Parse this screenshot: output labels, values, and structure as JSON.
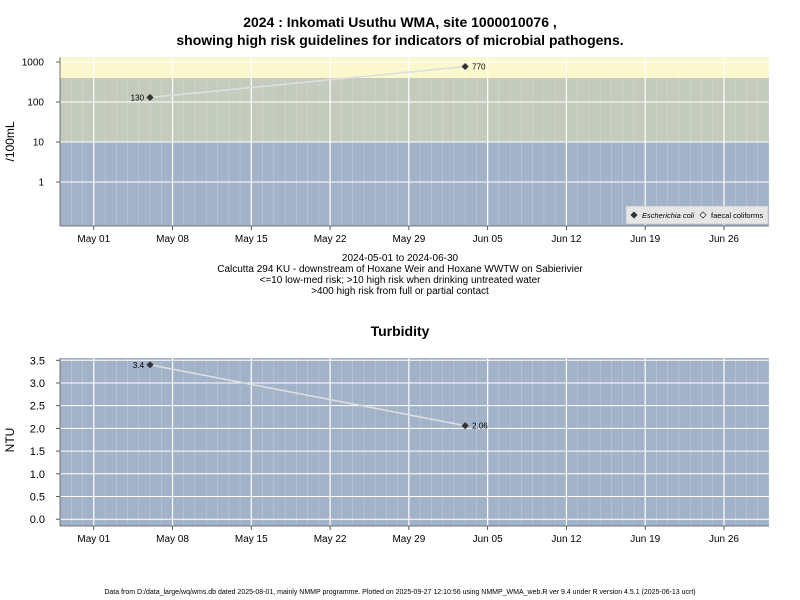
{
  "chart1": {
    "title_line1": "2024 : Inkomati Usuthu WMA, site 1000010076 ,",
    "title_line2": "showing high risk guidelines for indicators of microbial pathogens.",
    "ylabel": "/100mL",
    "yticks": [
      "1000",
      "100",
      "10",
      "1"
    ],
    "xticks": [
      "May 01",
      "May 08",
      "May 15",
      "May 22",
      "May 29",
      "Jun 05",
      "Jun 12",
      "Jun 19",
      "Jun 26"
    ],
    "legend": [
      {
        "label": "Escherichia coli",
        "marker": "filled-diamond"
      },
      {
        "label": "faecal coliforms",
        "marker": "open-diamond"
      }
    ],
    "note_date_range": "2024-05-01 to 2024-06-30",
    "note_site": "Calcutta 294 KU - downstream of Hoxane Weir and Hoxane WWTW on Sabierivier",
    "note_risk1": "<=10 low-med risk; >10 high risk when drinking untreated water",
    "note_risk2": ">400 high risk from full or partial contact"
  },
  "chart2": {
    "title": "Turbidity",
    "ylabel": "NTU",
    "yticks": [
      "3.5",
      "3.0",
      "2.5",
      "2.0",
      "1.5",
      "1.0",
      "0.5",
      "0.0"
    ],
    "xticks": [
      "May 01",
      "May 08",
      "May 15",
      "May 22",
      "May 29",
      "Jun 05",
      "Jun 12",
      "Jun 19",
      "Jun 26"
    ]
  },
  "footer": "Data from D:/data_large/wq/wms.db dated 2025-08-01, mainly NMMP programme. Plotted on 2025-09-27 12:10:56 using NMMP_WMA_web.R ver 9.4 under R version 4.5.1 (2025-06-13 ucrt)",
  "colors": {
    "band_low": "#a2b2c9",
    "band_mid": "#c3cbbd",
    "band_high": "#fcf7cd",
    "grid": "#ffffff",
    "series_line": "#dedede",
    "marker": "#333333"
  },
  "chart_data": [
    {
      "type": "line",
      "scale": "log",
      "ylim": [
        0.1,
        1000
      ],
      "xlim": [
        "2024-04-28",
        "2024-06-30"
      ],
      "grid": true,
      "legend_position": "bottom-right",
      "bands": [
        {
          "from": 0.1,
          "to": 10,
          "meaning": "low-med risk"
        },
        {
          "from": 10,
          "to": 400,
          "meaning": "high risk when drinking untreated water"
        },
        {
          "from": 400,
          "to": 1000,
          "meaning": "high risk from full or partial contact"
        }
      ],
      "series": [
        {
          "name": "Escherichia coli",
          "points": [
            {
              "x": "2024-05-06",
              "y": 130,
              "label": "130"
            },
            {
              "x": "2024-06-03",
              "y": 770,
              "label": "770"
            }
          ]
        }
      ]
    },
    {
      "type": "line",
      "ylim": [
        -0.15,
        3.55
      ],
      "xlim": [
        "2024-04-28",
        "2024-06-30"
      ],
      "grid": true,
      "series": [
        {
          "name": "",
          "points": [
            {
              "x": "2024-05-06",
              "y": 3.4,
              "label": "3.4"
            },
            {
              "x": "2024-06-03",
              "y": 2.06,
              "label": "2.06"
            }
          ]
        }
      ]
    }
  ]
}
